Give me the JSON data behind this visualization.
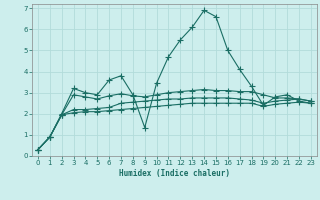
{
  "xlabel": "Humidex (Indice chaleur)",
  "ylabel": "",
  "bg_color": "#cdeeed",
  "grid_color": "#b2dcda",
  "line_color": "#1a6e64",
  "xlim": [
    -0.5,
    23.5
  ],
  "ylim": [
    0,
    7.2
  ],
  "xticks": [
    0,
    1,
    2,
    3,
    4,
    5,
    6,
    7,
    8,
    9,
    10,
    11,
    12,
    13,
    14,
    15,
    16,
    17,
    18,
    19,
    20,
    21,
    22,
    23
  ],
  "yticks": [
    0,
    1,
    2,
    3,
    4,
    5,
    6,
    7
  ],
  "series1_x": [
    0,
    1,
    2,
    3,
    4,
    5,
    6,
    7,
    8,
    9,
    10,
    11,
    12,
    13,
    14,
    15,
    16,
    17,
    18,
    19,
    20,
    21,
    22,
    23
  ],
  "series1_y": [
    0.3,
    0.9,
    2.0,
    3.2,
    3.0,
    2.9,
    3.6,
    3.8,
    2.9,
    1.35,
    3.45,
    4.7,
    5.5,
    6.1,
    6.9,
    6.6,
    5.0,
    4.1,
    3.3,
    2.4,
    2.8,
    2.9,
    2.6,
    2.5
  ],
  "series2_x": [
    0,
    1,
    2,
    3,
    4,
    5,
    6,
    7,
    8,
    9,
    10,
    11,
    12,
    13,
    14,
    15,
    16,
    17,
    18,
    19,
    20,
    21,
    22,
    23
  ],
  "series2_y": [
    0.3,
    0.9,
    1.95,
    2.9,
    2.8,
    2.7,
    2.85,
    2.95,
    2.85,
    2.8,
    2.9,
    3.0,
    3.05,
    3.1,
    3.15,
    3.1,
    3.1,
    3.05,
    3.05,
    2.9,
    2.75,
    2.75,
    2.7,
    2.6
  ],
  "series3_x": [
    0,
    1,
    2,
    3,
    4,
    5,
    6,
    7,
    8,
    9,
    10,
    11,
    12,
    13,
    14,
    15,
    16,
    17,
    18,
    19,
    20,
    21,
    22,
    23
  ],
  "series3_y": [
    0.3,
    0.9,
    1.95,
    2.2,
    2.2,
    2.25,
    2.3,
    2.5,
    2.55,
    2.6,
    2.65,
    2.7,
    2.7,
    2.75,
    2.75,
    2.75,
    2.75,
    2.7,
    2.65,
    2.5,
    2.6,
    2.65,
    2.7,
    2.6
  ],
  "series4_x": [
    0,
    1,
    2,
    3,
    4,
    5,
    6,
    7,
    8,
    9,
    10,
    11,
    12,
    13,
    14,
    15,
    16,
    17,
    18,
    19,
    20,
    21,
    22,
    23
  ],
  "series4_y": [
    0.3,
    0.9,
    1.95,
    2.05,
    2.1,
    2.1,
    2.15,
    2.2,
    2.25,
    2.3,
    2.35,
    2.4,
    2.45,
    2.5,
    2.5,
    2.5,
    2.5,
    2.5,
    2.5,
    2.35,
    2.45,
    2.5,
    2.55,
    2.5
  ],
  "marker_size": 1.8,
  "line_width": 0.8,
  "tick_fontsize": 5.0,
  "xlabel_fontsize": 5.5
}
